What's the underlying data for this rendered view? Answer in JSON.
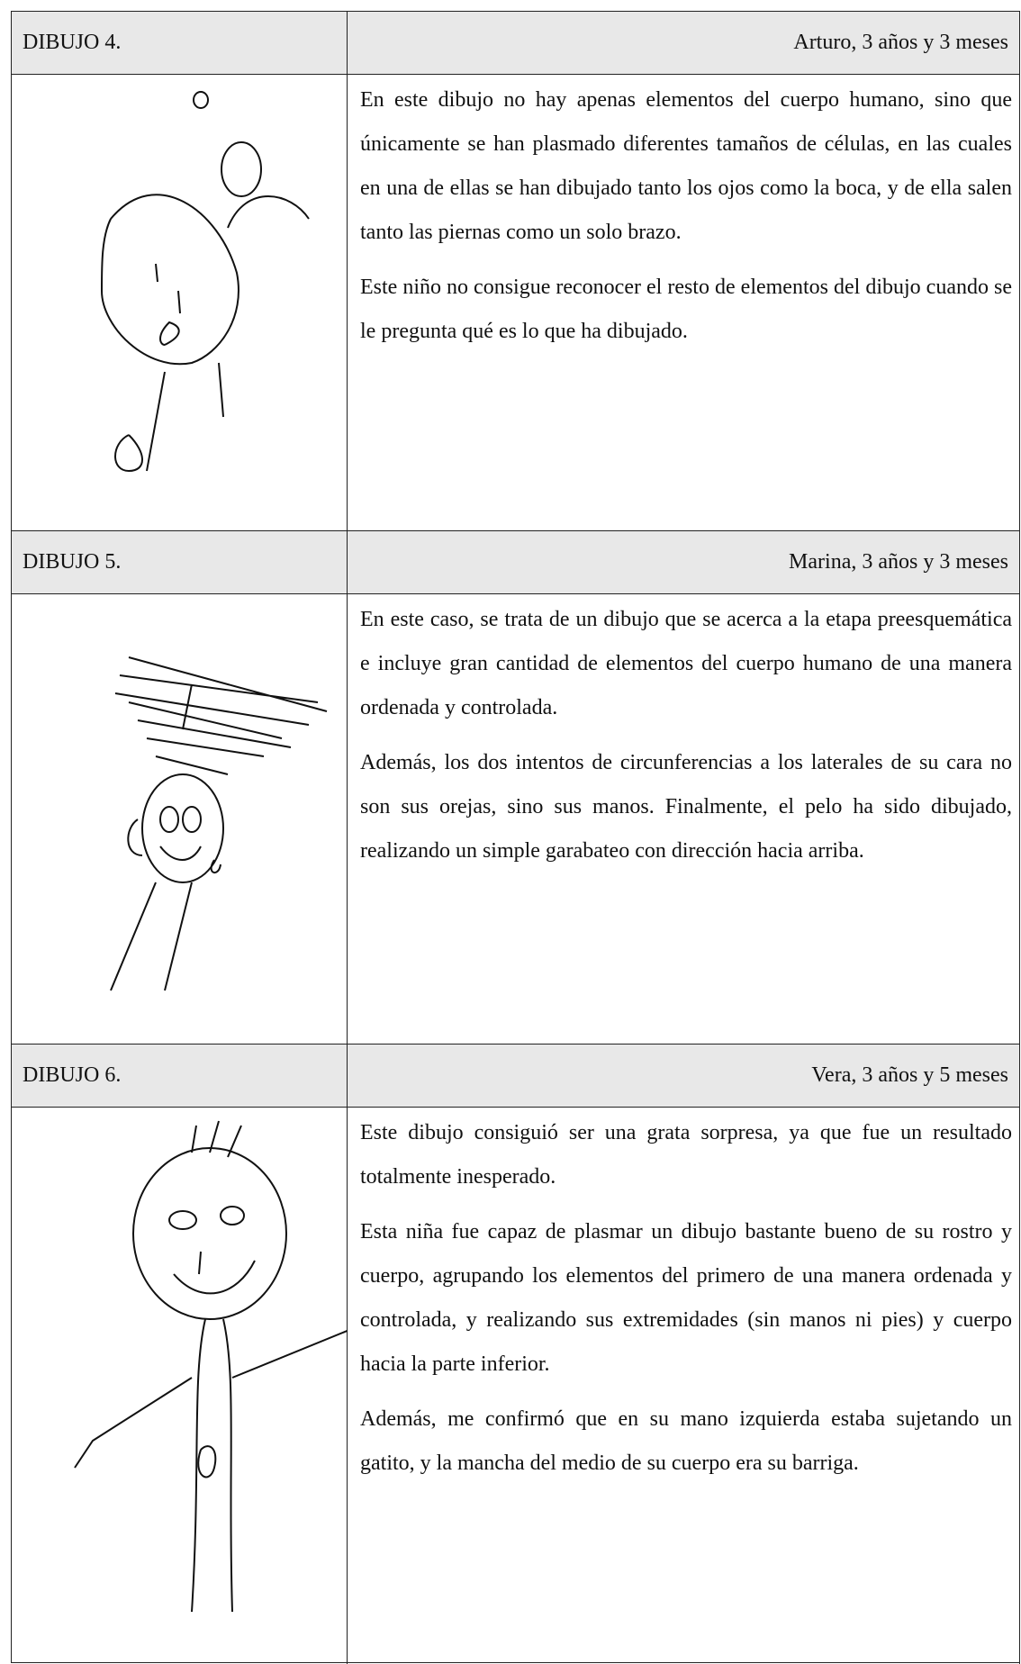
{
  "entries": [
    {
      "label": "DIBUJO 4.",
      "author": "Arturo, 3 años y 3 meses",
      "paragraphs": [
        "En este dibujo no hay apenas elementos del cuerpo humano, sino que únicamente se han plasmado diferentes tamaños de células, en las cuales en una de ellas se han dibujado tanto los ojos como la boca, y de ella salen tanto las piernas como un solo brazo.",
        "Este niño no consigue reconocer el resto de elementos del dibujo cuando se le pregunta qué es lo que ha dibujado."
      ]
    },
    {
      "label": "DIBUJO 5.",
      "author": "Marina, 3 años y 3 meses",
      "paragraphs": [
        "En este caso, se trata de un dibujo que se acerca a la etapa preesquemática e incluye gran cantidad de elementos del cuerpo humano de una manera ordenada y controlada.",
        "Además, los dos intentos de circunferencias a los laterales de su cara no son sus orejas, sino sus manos. Finalmente, el pelo ha sido dibujado, realizando un simple garabateo con dirección hacia arriba."
      ]
    },
    {
      "label": "DIBUJO 6.",
      "author": "Vera, 3 años y 5 meses",
      "paragraphs": [
        "Este dibujo consiguió ser una grata sorpresa, ya que fue un resultado totalmente inesperado.",
        "Esta niña fue capaz de plasmar un dibujo bastante bueno de su rostro y cuerpo, agrupando los elementos del primero de una manera ordenada y controlada, y realizando sus extremidades (sin manos ni pies) y cuerpo hacia la parte inferior.",
        "Además, me confirmó que en su mano izquierda estaba sujetando un gatito, y la mancha del medio de su cuerpo era su barriga."
      ]
    }
  ]
}
